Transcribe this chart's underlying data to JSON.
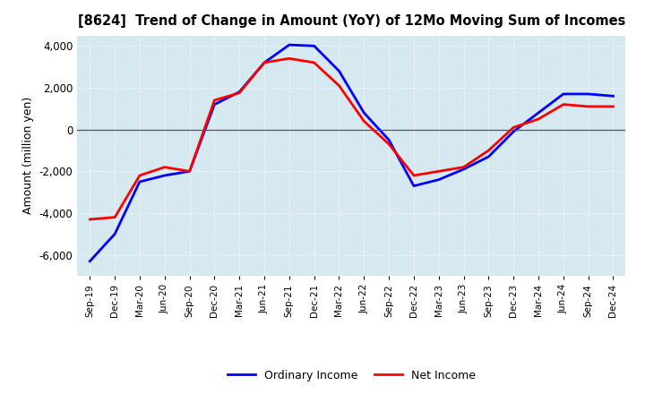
{
  "title": "[8624]  Trend of Change in Amount (YoY) of 12Mo Moving Sum of Incomes",
  "ylabel": "Amount (million yen)",
  "background_color": "#ffffff",
  "plot_bg_color": "#d6e8f0",
  "grid_color": "#ffffff",
  "x_labels": [
    "Sep-19",
    "Dec-19",
    "Mar-20",
    "Jun-20",
    "Sep-20",
    "Dec-20",
    "Mar-21",
    "Jun-21",
    "Sep-21",
    "Dec-21",
    "Mar-22",
    "Jun-22",
    "Sep-22",
    "Dec-22",
    "Mar-23",
    "Jun-23",
    "Sep-23",
    "Dec-23",
    "Mar-24",
    "Jun-24",
    "Sep-24",
    "Dec-24"
  ],
  "ordinary_income": [
    -6300,
    -5000,
    -2500,
    -2200,
    -2000,
    1200,
    1800,
    3200,
    4050,
    4000,
    2800,
    800,
    -500,
    -2700,
    -2400,
    -1900,
    -1300,
    -100,
    800,
    1700,
    1700,
    1600
  ],
  "net_income": [
    -4300,
    -4200,
    -2200,
    -1800,
    -2000,
    1400,
    1750,
    3200,
    3400,
    3200,
    2100,
    400,
    -700,
    -2200,
    -2000,
    -1800,
    -1000,
    100,
    500,
    1200,
    1100,
    1100
  ],
  "ylim": [
    -7000,
    4500
  ],
  "yticks": [
    -6000,
    -4000,
    -2000,
    0,
    2000,
    4000
  ],
  "line_color_ordinary": "#0000ff",
  "line_color_net": "#ff0000",
  "line_width": 2.0,
  "legend_labels": [
    "Ordinary Income",
    "Net Income"
  ]
}
